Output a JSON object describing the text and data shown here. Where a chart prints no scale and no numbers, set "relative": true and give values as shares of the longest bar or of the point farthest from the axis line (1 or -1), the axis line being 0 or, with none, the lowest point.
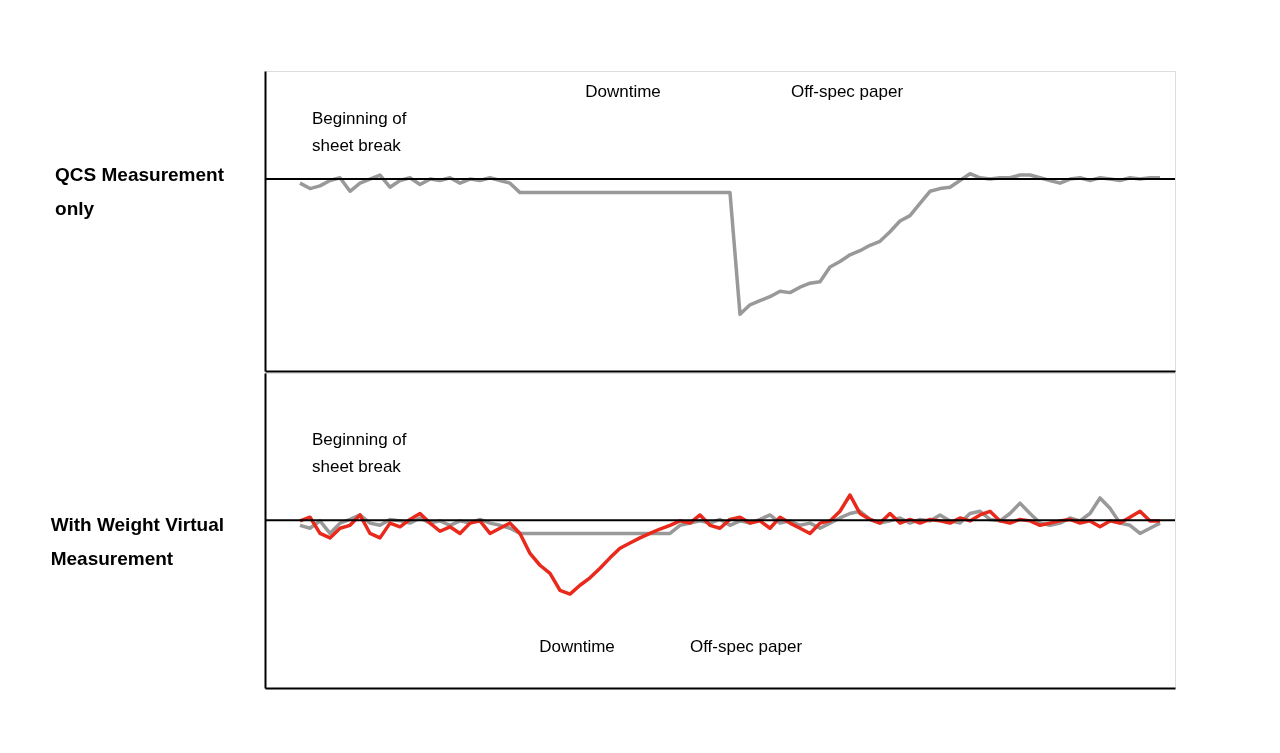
{
  "chart_data": [
    {
      "type": "line",
      "relative": true,
      "title": "QCS Measurement\nonly",
      "categories": [
        null,
        null,
        null,
        null,
        null,
        null,
        null,
        null,
        null,
        null,
        null,
        null,
        null,
        null,
        null,
        null,
        null,
        null,
        null,
        null,
        null,
        null,
        null,
        null,
        null,
        null,
        null,
        null,
        null,
        null,
        null,
        null,
        null,
        null,
        null,
        null,
        null,
        null,
        null,
        null,
        null,
        null,
        null,
        null,
        null,
        null,
        null,
        null,
        null,
        null,
        null,
        null,
        null,
        null,
        null,
        null,
        null,
        null,
        null,
        null,
        null,
        null,
        null,
        null,
        null,
        null,
        null,
        null,
        null,
        null,
        null,
        null,
        null,
        null,
        null,
        null,
        null,
        null,
        null,
        null,
        null,
        null,
        null,
        null,
        null,
        null,
        null
      ],
      "series": [
        {
          "color": "#999999",
          "values": [
            -0.03,
            -0.07,
            -0.05,
            -0.01,
            0.01,
            -0.09,
            -0.03,
            0,
            0.03,
            -0.06,
            -0.01,
            0.01,
            -0.04,
            0,
            -0.01,
            0.01,
            -0.03,
            0,
            -0.01,
            0.01,
            -0.01,
            -0.03,
            -0.1,
            -0.1,
            -0.1,
            -0.1,
            -0.1,
            -0.1,
            -0.1,
            -0.1,
            -0.1,
            -0.1,
            -0.1,
            -0.1,
            -0.1,
            -0.1,
            -0.1,
            -0.1,
            -0.1,
            -0.1,
            -0.1,
            -0.1,
            -0.1,
            -0.1,
            -1,
            -0.93,
            -0.9,
            -0.87,
            -0.83,
            -0.84,
            -0.8,
            -0.77,
            -0.76,
            -0.65,
            -0.61,
            -0.56,
            -0.53,
            -0.49,
            -0.46,
            -0.39,
            -0.31,
            -0.27,
            -0.18,
            -0.09,
            -0.07,
            -0.06,
            -0.01,
            0.04,
            0.01,
            0,
            0.01,
            0.01,
            0.03,
            0.03,
            0.01,
            -0.01,
            -0.03,
            0,
            0.01,
            -0.01,
            0.01,
            0,
            -0.01,
            0.01,
            0,
            0.01,
            0.01
          ]
        }
      ],
      "annotations": [
        "Downtime",
        "Off-spec paper",
        "Beginning of\nsheet break"
      ],
      "legend": false,
      "grid": false,
      "marker": "none",
      "line_style": "solid",
      "tick_labels": false
    },
    {
      "type": "line",
      "relative": true,
      "title": "With Weight Virtual\nMeasurement",
      "categories": [
        null,
        null,
        null,
        null,
        null,
        null,
        null,
        null,
        null,
        null,
        null,
        null,
        null,
        null,
        null,
        null,
        null,
        null,
        null,
        null,
        null,
        null,
        null,
        null,
        null,
        null,
        null,
        null,
        null,
        null,
        null,
        null,
        null,
        null,
        null,
        null,
        null,
        null,
        null,
        null,
        null,
        null,
        null,
        null,
        null,
        null,
        null,
        null,
        null,
        null,
        null,
        null,
        null,
        null,
        null,
        null,
        null,
        null,
        null,
        null,
        null,
        null,
        null,
        null,
        null,
        null,
        null,
        null,
        null,
        null,
        null,
        null,
        null,
        null,
        null,
        null,
        null,
        null,
        null,
        null,
        null,
        null,
        null,
        null,
        null,
        null,
        null
      ],
      "series": [
        {
          "color": "#999999",
          "values": [
            -0.07,
            -0.11,
            -0.01,
            -0.18,
            -0.04,
            0.01,
            0.07,
            -0.04,
            -0.07,
            0.01,
            -0.01,
            -0.04,
            0.03,
            -0.04,
            -0.01,
            -0.07,
            -0.01,
            -0.04,
            0.01,
            -0.04,
            -0.07,
            -0.11,
            -0.18,
            -0.18,
            -0.18,
            -0.18,
            -0.18,
            -0.18,
            -0.18,
            -0.18,
            -0.18,
            -0.18,
            -0.18,
            -0.18,
            -0.18,
            -0.18,
            -0.18,
            -0.18,
            -0.07,
            -0.04,
            -0.01,
            -0.04,
            0.01,
            -0.07,
            -0.01,
            -0.04,
            0.01,
            0.07,
            -0.04,
            -0.01,
            -0.07,
            -0.04,
            -0.11,
            -0.04,
            0.03,
            0.09,
            0.12,
            0.01,
            -0.04,
            -0.01,
            0.03,
            -0.04,
            0.01,
            -0.01,
            0.07,
            -0.01,
            -0.04,
            0.09,
            0.12,
            0.01,
            -0.01,
            0.09,
            0.23,
            0.09,
            -0.04,
            -0.07,
            -0.04,
            0.03,
            -0.01,
            0.09,
            0.3,
            0.16,
            -0.04,
            -0.07,
            -0.18,
            -0.11,
            -0.04
          ]
        },
        {
          "color": "#e8291c",
          "values": [
            -0.01,
            0.04,
            -0.18,
            -0.24,
            -0.11,
            -0.07,
            0.07,
            -0.18,
            -0.24,
            -0.04,
            -0.09,
            0.01,
            0.09,
            -0.04,
            -0.15,
            -0.09,
            -0.18,
            -0.04,
            -0.01,
            -0.18,
            -0.11,
            -0.04,
            -0.18,
            -0.45,
            -0.61,
            -0.72,
            -0.95,
            -1,
            -0.88,
            -0.78,
            -0.65,
            -0.51,
            -0.38,
            -0.31,
            -0.24,
            -0.18,
            -0.12,
            -0.07,
            -0.01,
            -0.04,
            0.07,
            -0.07,
            -0.11,
            0.01,
            0.04,
            -0.04,
            -0.01,
            -0.11,
            0.04,
            -0.04,
            -0.11,
            -0.18,
            -0.04,
            -0.01,
            0.12,
            0.34,
            0.09,
            0.01,
            -0.04,
            0.09,
            -0.04,
            0.01,
            -0.04,
            0.01,
            -0.01,
            -0.04,
            0.03,
            -0.01,
            0.07,
            0.12,
            -0.01,
            -0.04,
            0.01,
            -0.01,
            -0.07,
            -0.04,
            -0.01,
            0.01,
            -0.04,
            -0.01,
            -0.09,
            -0.01,
            -0.04,
            0.04,
            0.12,
            -0.01,
            -0.01
          ]
        }
      ],
      "annotations": [
        "Beginning of\nsheet break",
        "Downtime",
        "Off-spec paper"
      ],
      "legend": false,
      "grid": false,
      "marker": "none",
      "line_style": "solid",
      "tick_labels": false
    }
  ]
}
